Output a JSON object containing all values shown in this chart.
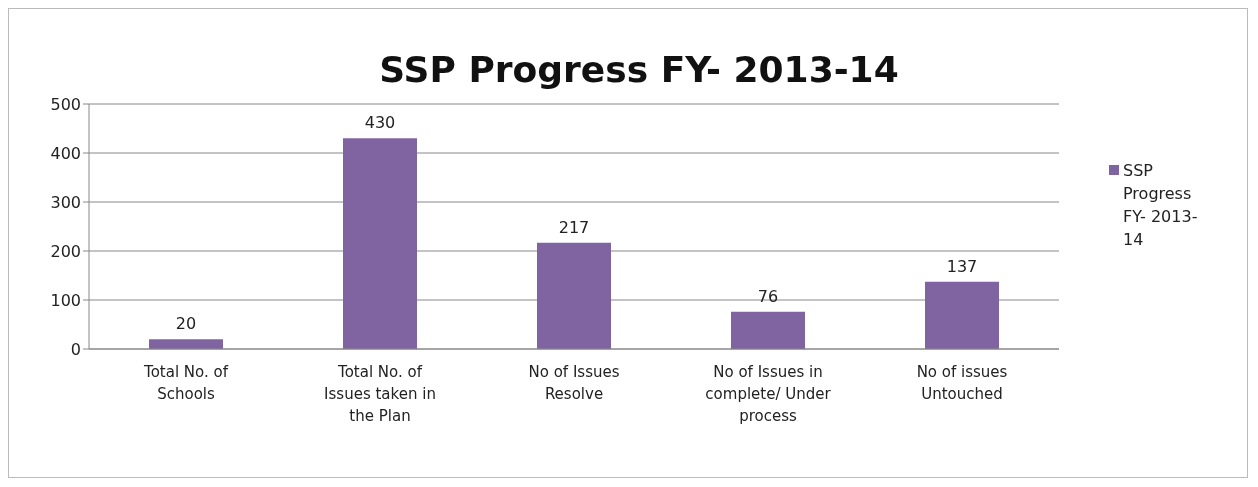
{
  "chart_data": {
    "type": "bar",
    "title": "SSP Progress FY- 2013-14",
    "categories": [
      "Total No. of Schools",
      "Total No. of Issues taken in the Plan",
      "No of Issues Resolve",
      "No of Issues in complete/ Under process",
      "No of issues Untouched"
    ],
    "series": [
      {
        "name": "SSP Progress FY- 2013-14",
        "color": "#8064a2",
        "values": [
          20,
          430,
          217,
          76,
          137
        ]
      }
    ],
    "ylim": [
      0,
      500
    ],
    "yticks": [
      0,
      100,
      200,
      300,
      400,
      500
    ],
    "grid": "y",
    "legend": "right",
    "data_labels": true
  }
}
